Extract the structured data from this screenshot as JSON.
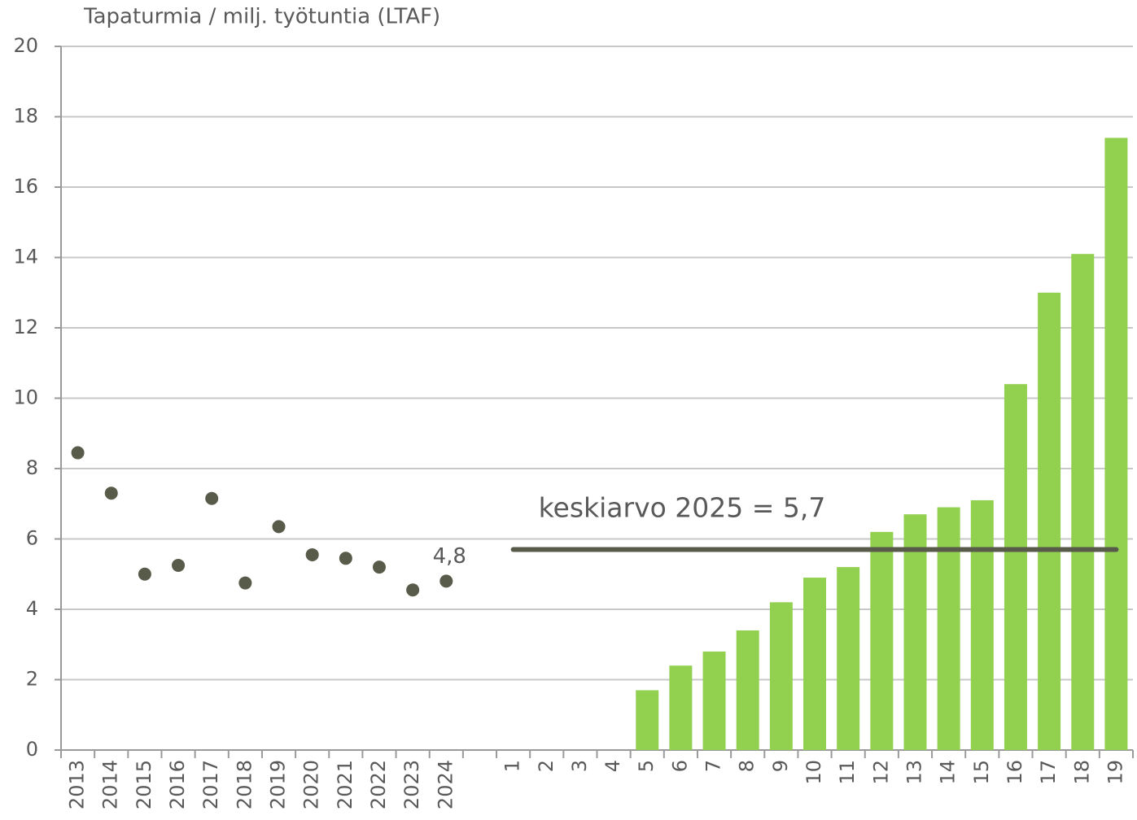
{
  "chart_data": {
    "type": "combo",
    "title": "Tapaturmia / milj. työtuntia (LTAF)",
    "categories": [
      "2013",
      "2014",
      "2015",
      "2016",
      "2017",
      "2018",
      "2019",
      "2020",
      "2021",
      "2022",
      "2023",
      "2024",
      null,
      "1",
      "2",
      "3",
      "4",
      "5",
      "6",
      "7",
      "8",
      "9",
      "10",
      "11",
      "12",
      "13",
      "14",
      "15",
      "16",
      "17",
      "18",
      "19"
    ],
    "series": [
      {
        "type": "scatter",
        "color": "#595b4a",
        "values": [
          8.45,
          7.3,
          5.0,
          5.25,
          7.15,
          4.75,
          6.35,
          5.55,
          5.45,
          5.2,
          4.55,
          4.8,
          null,
          null,
          null,
          null,
          null,
          null,
          null,
          null,
          null,
          null,
          null,
          null,
          null,
          null,
          null,
          null,
          null,
          null,
          null,
          null
        ],
        "value_labels": [
          null,
          null,
          null,
          null,
          null,
          null,
          null,
          null,
          null,
          null,
          null,
          "4,8",
          null,
          null,
          null,
          null,
          null,
          null,
          null,
          null,
          null,
          null,
          null,
          null,
          null,
          null,
          null,
          null,
          null,
          null,
          null,
          null
        ]
      },
      {
        "type": "bar",
        "color": "#92d050",
        "values": [
          null,
          null,
          null,
          null,
          null,
          null,
          null,
          null,
          null,
          null,
          null,
          null,
          null,
          null,
          null,
          null,
          null,
          1.7,
          2.4,
          2.8,
          3.4,
          4.2,
          4.9,
          5.2,
          6.2,
          6.7,
          6.9,
          7.1,
          10.4,
          13.0,
          14.1,
          17.4
        ]
      },
      {
        "type": "line",
        "color": "#595b4a",
        "values": [
          null,
          null,
          null,
          null,
          null,
          null,
          null,
          null,
          null,
          null,
          null,
          null,
          null,
          5.7,
          5.7,
          5.7,
          5.7,
          5.7,
          5.7,
          5.7,
          5.7,
          5.7,
          5.7,
          5.7,
          5.7,
          5.7,
          5.7,
          5.7,
          5.7,
          5.7,
          5.7,
          5.7
        ]
      }
    ],
    "annotations": [
      {
        "text": "keskiarvo 2025 = 5,7"
      }
    ],
    "ylim": [
      0,
      20
    ],
    "yticks": [
      0,
      2,
      4,
      6,
      8,
      10,
      12,
      14,
      16,
      18,
      20
    ],
    "grid": true
  }
}
